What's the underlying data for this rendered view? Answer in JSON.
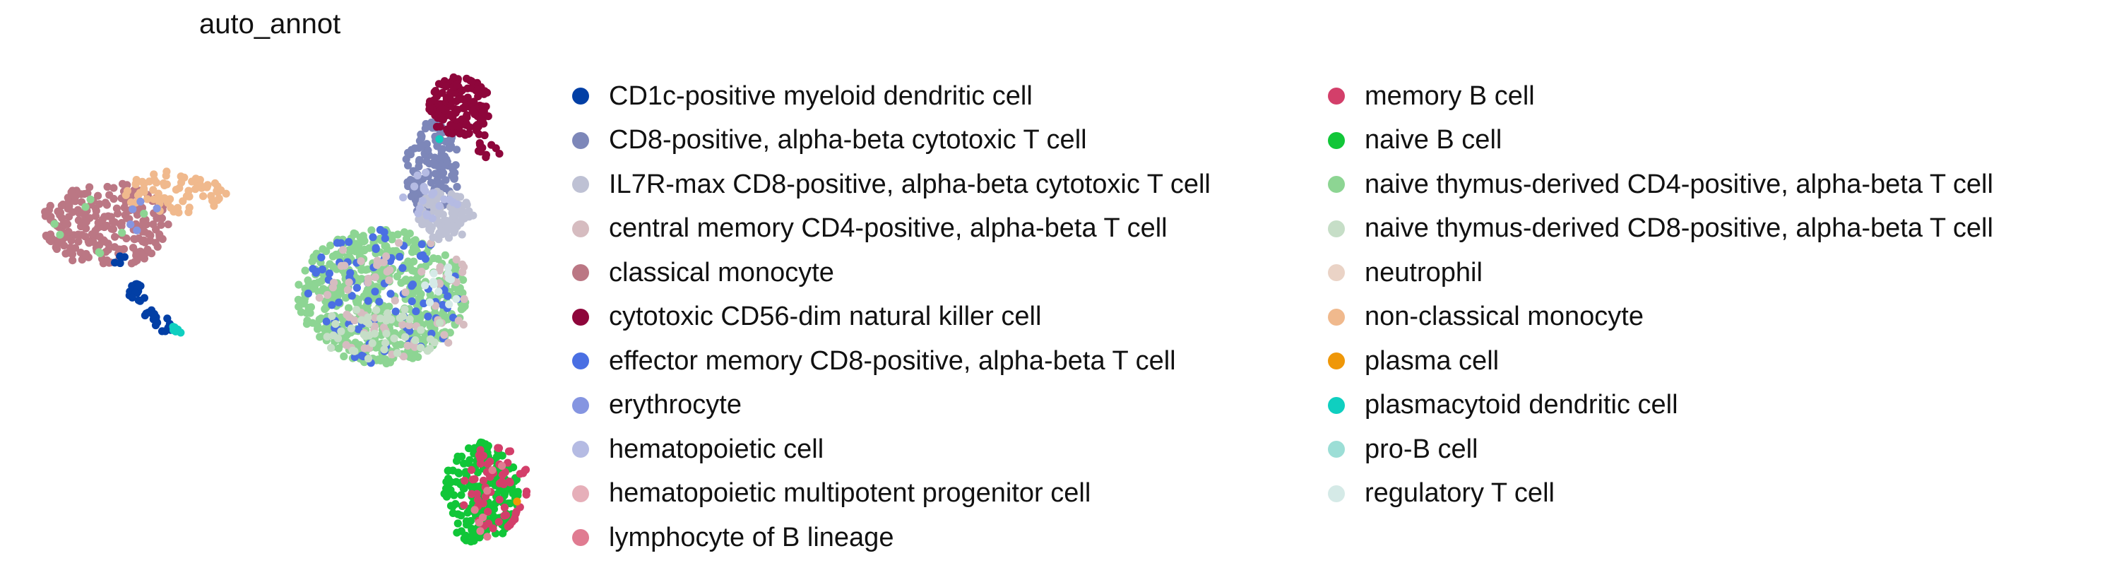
{
  "chart_data": {
    "type": "scatter",
    "title": "auto_annot",
    "xlabel": "",
    "ylabel": "",
    "grid": false,
    "axes_visible": false,
    "legend_position": "right, two columns",
    "legend_columns": [
      [
        {
          "name": "CD1c-positive myeloid dendritic cell",
          "color": "#023fa5"
        },
        {
          "name": "CD8-positive, alpha-beta cytotoxic T cell",
          "color": "#7d87b9"
        },
        {
          "name": "IL7R-max CD8-positive, alpha-beta cytotoxic T cell",
          "color": "#bec1d4"
        },
        {
          "name": "central memory CD4-positive, alpha-beta T cell",
          "color": "#d6bcc0"
        },
        {
          "name": "classical monocyte",
          "color": "#bb7784"
        },
        {
          "name": "cytotoxic CD56-dim natural killer cell",
          "color": "#8e063b"
        },
        {
          "name": "effector memory CD8-positive, alpha-beta T cell",
          "color": "#4a6fe3"
        },
        {
          "name": "erythrocyte",
          "color": "#8595e1"
        },
        {
          "name": "hematopoietic cell",
          "color": "#b5bbe3"
        },
        {
          "name": "hematopoietic multipotent progenitor cell",
          "color": "#e6afb9"
        },
        {
          "name": "lymphocyte of B lineage",
          "color": "#e07b91"
        }
      ],
      [
        {
          "name": "memory B cell",
          "color": "#d33f6a"
        },
        {
          "name": "naive B cell",
          "color": "#11c638"
        },
        {
          "name": "naive thymus-derived CD4-positive, alpha-beta T cell",
          "color": "#8dd593"
        },
        {
          "name": "naive thymus-derived CD8-positive, alpha-beta T cell",
          "color": "#c6dec7"
        },
        {
          "name": "neutrophil",
          "color": "#ead3c6"
        },
        {
          "name": "non-classical monocyte",
          "color": "#f0b98d"
        },
        {
          "name": "plasma cell",
          "color": "#ef9708"
        },
        {
          "name": "plasmacytoid dendritic cell",
          "color": "#0fcfc0"
        },
        {
          "name": "pro-B cell",
          "color": "#9cded6"
        },
        {
          "name": "regulatory T cell",
          "color": "#d5eae7"
        }
      ]
    ]
  }
}
